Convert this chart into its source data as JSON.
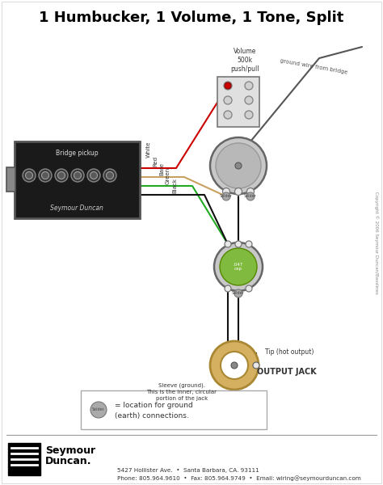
{
  "title": "1 Humbucker, 1 Volume, 1 Tone, Split",
  "footer_line1": "5427 Hollister Ave.  •  Santa Barbara, CA. 93111",
  "footer_line2": "Phone: 805.964.9610  •  Fax: 805.964.9749  •  Email: wiring@seymourduncan.com",
  "copyright": "Copyright © 2006 Seymour Duncan/Basslines",
  "legend_text1": "= location for ground",
  "legend_text2": "(earth) connections.",
  "volume_label": "Volume\n500k\npush/pull",
  "bridge_label": "Bridge pickup",
  "sd_label": "Seymour Duncan",
  "output_jack_label": "OUTPUT JACK",
  "tip_label": "Tip (hot output)",
  "sleeve_label": "Sleeve (ground).\nThis is the inner, circular\nportion of the jack",
  "ground_label": "ground wire from bridge",
  "wire_white": "#ffffff",
  "wire_red": "#cc0000",
  "wire_bare": "#c8a060",
  "wire_green": "#22aa22",
  "wire_black": "#111111",
  "wire_ground": "#555555",
  "pickup_fill": "#1a1a1a",
  "pickup_edge": "#555555",
  "pot_fill": "#c8c8c8",
  "pot_edge": "#666666",
  "jack_outer": "#d4b060",
  "jack_inner": "#ffffff",
  "solder_fill": "#aaaaaa",
  "solder_edge": "#777777"
}
